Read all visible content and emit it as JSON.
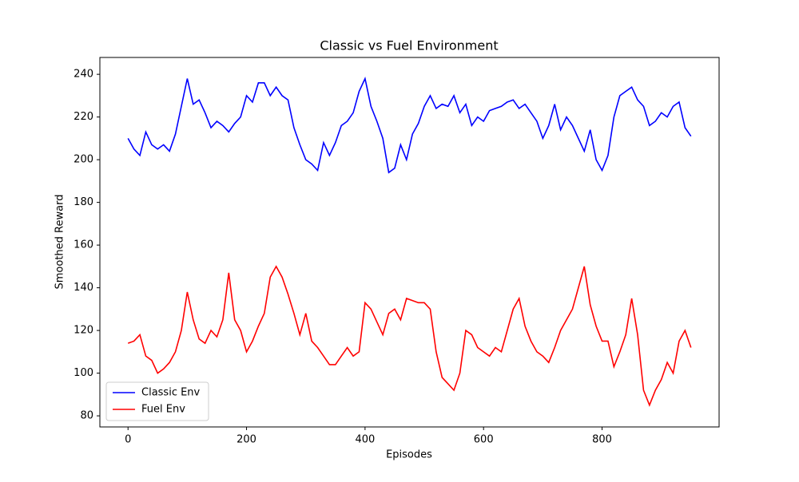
{
  "chart_data": {
    "type": "line",
    "title": "Classic vs Fuel Environment",
    "x_label": "Episodes",
    "y_label": "Smoothed Reward",
    "x": [
      0,
      10,
      20,
      30,
      40,
      50,
      60,
      70,
      80,
      90,
      100,
      110,
      120,
      130,
      140,
      150,
      160,
      170,
      180,
      190,
      200,
      210,
      220,
      230,
      240,
      250,
      260,
      270,
      280,
      290,
      300,
      310,
      320,
      330,
      340,
      350,
      360,
      370,
      380,
      390,
      400,
      410,
      420,
      430,
      440,
      450,
      460,
      470,
      480,
      490,
      500,
      510,
      520,
      530,
      540,
      550,
      560,
      570,
      580,
      590,
      600,
      610,
      620,
      630,
      640,
      650,
      660,
      670,
      680,
      690,
      700,
      710,
      720,
      730,
      740,
      750,
      760,
      770,
      780,
      790,
      800,
      810,
      820,
      830,
      840,
      850,
      860,
      870,
      880,
      890,
      900,
      910,
      920,
      930,
      940,
      950
    ],
    "series": [
      {
        "name": "Classic Env",
        "color": "#0000ff",
        "values": [
          210,
          205,
          202,
          213,
          207,
          205,
          207,
          204,
          212,
          225,
          238,
          226,
          228,
          222,
          215,
          218,
          216,
          213,
          217,
          220,
          230,
          227,
          236,
          236,
          230,
          234,
          230,
          228,
          215,
          207,
          200,
          198,
          195,
          208,
          202,
          208,
          216,
          218,
          222,
          232,
          238,
          225,
          218,
          210,
          194,
          196,
          207,
          200,
          212,
          217,
          225,
          230,
          224,
          226,
          225,
          230,
          222,
          226,
          216,
          220,
          218,
          223,
          224,
          225,
          227,
          228,
          224,
          226,
          222,
          218,
          210,
          216,
          226,
          214,
          220,
          216,
          210,
          204,
          214,
          200,
          195,
          202,
          220,
          230,
          232,
          234,
          228,
          225,
          216,
          218,
          222,
          220,
          225,
          227,
          215,
          211
        ]
      },
      {
        "name": "Fuel Env",
        "color": "#ff0000",
        "values": [
          114,
          115,
          118,
          108,
          106,
          100,
          102,
          105,
          110,
          120,
          138,
          125,
          116,
          114,
          120,
          117,
          125,
          147,
          125,
          120,
          110,
          115,
          122,
          128,
          145,
          150,
          145,
          137,
          128,
          118,
          128,
          115,
          112,
          108,
          104,
          104,
          108,
          112,
          108,
          110,
          133,
          130,
          124,
          118,
          128,
          130,
          125,
          135,
          134,
          133,
          133,
          130,
          110,
          98,
          95,
          92,
          100,
          120,
          118,
          112,
          110,
          108,
          112,
          110,
          120,
          130,
          135,
          122,
          115,
          110,
          108,
          105,
          112,
          120,
          125,
          130,
          140,
          150,
          132,
          122,
          115,
          115,
          103,
          110,
          118,
          135,
          118,
          92,
          85,
          92,
          97,
          105,
          100,
          115,
          120,
          112
        ]
      }
    ],
    "xlim": [
      -47.5,
      997.5
    ],
    "ylim": [
      74.8,
      247.9
    ],
    "xticks": [
      0,
      200,
      400,
      600,
      800
    ],
    "yticks": [
      80,
      100,
      120,
      140,
      160,
      180,
      200,
      220,
      240
    ],
    "grid": false,
    "legend": "lower left"
  }
}
